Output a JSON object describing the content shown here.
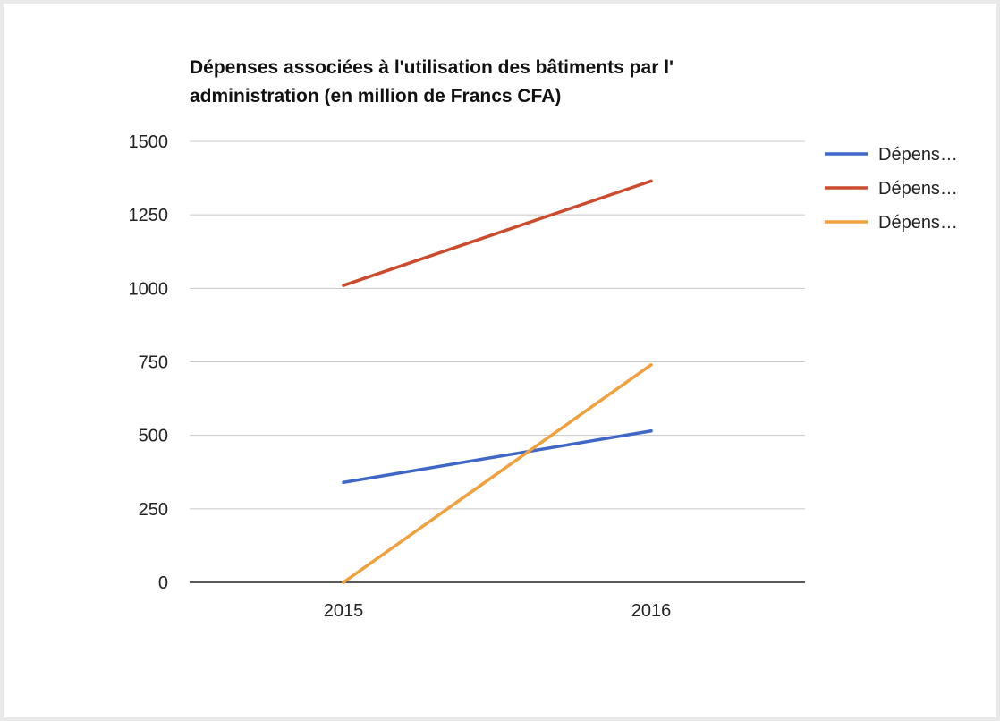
{
  "chart_data": {
    "type": "line",
    "title": "Dépenses associées à l'utilisation des bâtiments par l' administration (en million de Francs CFA)",
    "xlabel": "",
    "ylabel": "",
    "categories": [
      "2015",
      "2016"
    ],
    "ylim": [
      0,
      1500
    ],
    "yticks": [
      0,
      250,
      500,
      750,
      1000,
      1250,
      1500
    ],
    "grid": true,
    "legend_position": "right",
    "series": [
      {
        "name": "Dépens…",
        "color": "#3f67c7",
        "values": [
          340,
          515
        ]
      },
      {
        "name": "Dépens…",
        "color": "#cc4b2c",
        "values": [
          1010,
          1365
        ]
      },
      {
        "name": "Dépens…",
        "color": "#f0a03c",
        "values": [
          0,
          740
        ]
      }
    ]
  }
}
